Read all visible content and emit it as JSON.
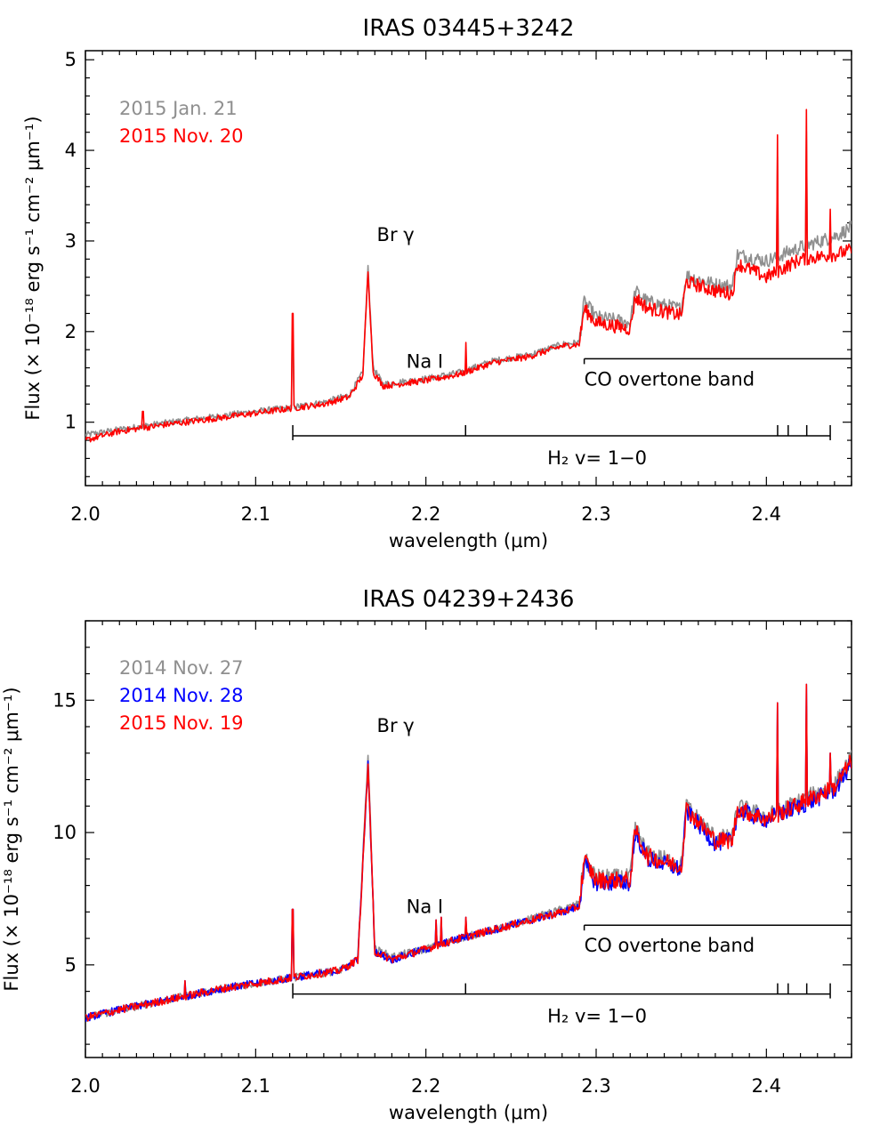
{
  "chart_data": [
    {
      "type": "line",
      "title": "IRAS 03445+3242",
      "xlabel": "wavelength (μm)",
      "ylabel": "Flux (× 10⁻¹⁸ erg s⁻¹ cm⁻² μm⁻¹)",
      "xlim": [
        2.0,
        2.45
      ],
      "ylim": [
        0.3,
        5.1
      ],
      "xticks": [
        "2.0",
        "2.1",
        "2.2",
        "2.3",
        "2.4"
      ],
      "yticks": [
        "1",
        "2",
        "3",
        "4",
        "5"
      ],
      "ytick_values": [
        1,
        2,
        3,
        4,
        5
      ],
      "series": [
        {
          "name": "2015 Jan. 21",
          "color": "#8f8f8f",
          "points": [
            [
              2.0,
              0.86
            ],
            [
              2.02,
              0.92
            ],
            [
              2.05,
              1.0
            ],
            [
              2.08,
              1.07
            ],
            [
              2.1,
              1.12
            ],
            [
              2.12,
              1.16
            ],
            [
              2.14,
              1.22
            ],
            [
              2.155,
              1.3
            ],
            [
              2.163,
              1.55
            ],
            [
              2.166,
              2.7
            ],
            [
              2.169,
              1.6
            ],
            [
              2.175,
              1.42
            ],
            [
              2.2,
              1.48
            ],
            [
              2.22,
              1.55
            ],
            [
              2.24,
              1.68
            ],
            [
              2.26,
              1.74
            ],
            [
              2.27,
              1.8
            ],
            [
              2.28,
              1.86
            ],
            [
              2.29,
              1.88
            ],
            [
              2.293,
              2.33
            ],
            [
              2.3,
              2.16
            ],
            [
              2.32,
              2.1
            ],
            [
              2.323,
              2.45
            ],
            [
              2.33,
              2.33
            ],
            [
              2.35,
              2.25
            ],
            [
              2.353,
              2.62
            ],
            [
              2.37,
              2.52
            ],
            [
              2.38,
              2.5
            ],
            [
              2.383,
              2.85
            ],
            [
              2.4,
              2.78
            ],
            [
              2.42,
              2.93
            ],
            [
              2.44,
              3.05
            ],
            [
              2.45,
              3.15
            ]
          ]
        },
        {
          "name": "2015 Nov. 20",
          "color": "#ff0000",
          "points": [
            [
              2.0,
              0.8
            ],
            [
              2.02,
              0.9
            ],
            [
              2.05,
              0.98
            ],
            [
              2.08,
              1.05
            ],
            [
              2.1,
              1.1
            ],
            [
              2.12,
              1.15
            ],
            [
              2.14,
              1.2
            ],
            [
              2.155,
              1.28
            ],
            [
              2.163,
              1.52
            ],
            [
              2.166,
              2.68
            ],
            [
              2.169,
              1.55
            ],
            [
              2.175,
              1.4
            ],
            [
              2.2,
              1.46
            ],
            [
              2.22,
              1.53
            ],
            [
              2.24,
              1.66
            ],
            [
              2.26,
              1.72
            ],
            [
              2.27,
              1.78
            ],
            [
              2.28,
              1.84
            ],
            [
              2.29,
              1.86
            ],
            [
              2.293,
              2.25
            ],
            [
              2.3,
              2.1
            ],
            [
              2.32,
              2.03
            ],
            [
              2.323,
              2.38
            ],
            [
              2.33,
              2.26
            ],
            [
              2.35,
              2.18
            ],
            [
              2.353,
              2.55
            ],
            [
              2.37,
              2.45
            ],
            [
              2.38,
              2.42
            ],
            [
              2.383,
              2.75
            ],
            [
              2.4,
              2.6
            ],
            [
              2.42,
              2.8
            ],
            [
              2.44,
              2.85
            ],
            [
              2.45,
              2.9
            ]
          ]
        }
      ],
      "emission_lines": [
        {
          "x": 2.1218,
          "peak": 2.2
        },
        {
          "x": 2.2233,
          "peak": 1.88
        },
        {
          "x": 2.4066,
          "peak": 4.17
        },
        {
          "x": 2.4237,
          "peak": 4.45
        },
        {
          "x": 2.4375,
          "peak": 3.35
        },
        {
          "x": 2.0338,
          "peak": 1.12
        }
      ],
      "annotations": {
        "br_gamma": {
          "text": "Br γ",
          "x": 2.166,
          "y": 3.0
        },
        "na_i": {
          "text": "Na I",
          "x": 2.192,
          "y": 1.7
        },
        "co_band": {
          "text": "CO overtone band",
          "x_start": 2.293,
          "x_end": 2.45,
          "y": 1.7
        },
        "h2": {
          "text": "H₂ v= 1−0",
          "x_start": 2.1218,
          "x_end": 2.4375,
          "y": 0.85,
          "ticks": [
            2.1218,
            2.2233,
            2.4066,
            2.4128,
            2.4237,
            2.4375
          ]
        }
      }
    },
    {
      "type": "line",
      "title": "IRAS 04239+2436",
      "xlabel": "wavelength (μm)",
      "ylabel": "Flux (× 10⁻¹⁸ erg s⁻¹ cm⁻² μm⁻¹)",
      "xlim": [
        2.0,
        2.45
      ],
      "ylim": [
        1.5,
        18.0
      ],
      "xticks": [
        "2.0",
        "2.1",
        "2.2",
        "2.3",
        "2.4"
      ],
      "yticks": [
        "5",
        "10",
        "15"
      ],
      "ytick_values": [
        5,
        10,
        15
      ],
      "series": [
        {
          "name": "2014 Nov. 27",
          "color": "#8f8f8f",
          "points": [
            [
              2.0,
              3.0
            ],
            [
              2.02,
              3.3
            ],
            [
              2.05,
              3.7
            ],
            [
              2.08,
              4.1
            ],
            [
              2.1,
              4.3
            ],
            [
              2.12,
              4.5
            ],
            [
              2.15,
              4.8
            ],
            [
              2.16,
              5.2
            ],
            [
              2.166,
              13.0
            ],
            [
              2.17,
              5.6
            ],
            [
              2.18,
              5.3
            ],
            [
              2.2,
              5.6
            ],
            [
              2.22,
              6.0
            ],
            [
              2.25,
              6.5
            ],
            [
              2.28,
              7.1
            ],
            [
              2.29,
              7.3
            ],
            [
              2.293,
              9.0
            ],
            [
              2.3,
              8.3
            ],
            [
              2.32,
              8.3
            ],
            [
              2.323,
              10.2
            ],
            [
              2.33,
              9.2
            ],
            [
              2.35,
              8.8
            ],
            [
              2.353,
              11.0
            ],
            [
              2.37,
              9.8
            ],
            [
              2.38,
              9.8
            ],
            [
              2.383,
              11.0
            ],
            [
              2.4,
              10.6
            ],
            [
              2.42,
              11.2
            ],
            [
              2.44,
              11.8
            ],
            [
              2.45,
              12.8
            ]
          ]
        },
        {
          "name": "2014 Nov. 28",
          "color": "#0000ff",
          "points": [
            [
              2.0,
              3.0
            ],
            [
              2.02,
              3.3
            ],
            [
              2.05,
              3.7
            ],
            [
              2.08,
              4.1
            ],
            [
              2.1,
              4.3
            ],
            [
              2.12,
              4.5
            ],
            [
              2.15,
              4.8
            ],
            [
              2.16,
              5.2
            ],
            [
              2.166,
              12.6
            ],
            [
              2.17,
              5.5
            ],
            [
              2.18,
              5.2
            ],
            [
              2.2,
              5.6
            ],
            [
              2.22,
              6.0
            ],
            [
              2.25,
              6.5
            ],
            [
              2.28,
              7.0
            ],
            [
              2.29,
              7.2
            ],
            [
              2.293,
              8.8
            ],
            [
              2.3,
              8.1
            ],
            [
              2.32,
              8.1
            ],
            [
              2.323,
              10.0
            ],
            [
              2.33,
              9.0
            ],
            [
              2.35,
              8.6
            ],
            [
              2.353,
              10.8
            ],
            [
              2.37,
              9.6
            ],
            [
              2.38,
              9.7
            ],
            [
              2.383,
              10.8
            ],
            [
              2.4,
              10.5
            ],
            [
              2.42,
              11.0
            ],
            [
              2.44,
              11.6
            ],
            [
              2.45,
              12.6
            ]
          ]
        },
        {
          "name": "2015 Nov. 19",
          "color": "#ff0000",
          "points": [
            [
              2.0,
              3.0
            ],
            [
              2.02,
              3.3
            ],
            [
              2.05,
              3.7
            ],
            [
              2.08,
              4.1
            ],
            [
              2.1,
              4.3
            ],
            [
              2.12,
              4.5
            ],
            [
              2.15,
              4.8
            ],
            [
              2.16,
              5.2
            ],
            [
              2.166,
              12.6
            ],
            [
              2.17,
              5.5
            ],
            [
              2.18,
              5.2
            ],
            [
              2.2,
              5.6
            ],
            [
              2.22,
              6.0
            ],
            [
              2.25,
              6.5
            ],
            [
              2.28,
              7.0
            ],
            [
              2.29,
              7.2
            ],
            [
              2.293,
              9.0
            ],
            [
              2.3,
              8.2
            ],
            [
              2.32,
              8.2
            ],
            [
              2.323,
              10.1
            ],
            [
              2.33,
              9.1
            ],
            [
              2.35,
              8.7
            ],
            [
              2.353,
              10.9
            ],
            [
              2.37,
              9.7
            ],
            [
              2.38,
              9.7
            ],
            [
              2.383,
              10.9
            ],
            [
              2.4,
              10.5
            ],
            [
              2.42,
              11.1
            ],
            [
              2.44,
              11.7
            ],
            [
              2.45,
              12.7
            ]
          ]
        }
      ],
      "emission_lines": [
        {
          "x": 2.1218,
          "peak": 7.1
        },
        {
          "x": 2.2233,
          "peak": 6.8
        },
        {
          "x": 2.4066,
          "peak": 14.9
        },
        {
          "x": 2.4237,
          "peak": 15.6
        },
        {
          "x": 2.4375,
          "peak": 13.0
        },
        {
          "x": 2.0586,
          "peak": 4.4
        },
        {
          "x": 2.2062,
          "peak": 6.7
        },
        {
          "x": 2.2089,
          "peak": 6.8
        }
      ],
      "annotations": {
        "br_gamma": {
          "text": "Br γ",
          "x": 2.166,
          "y": 13.8
        },
        "na_i": {
          "text": "Na I",
          "x": 2.192,
          "y": 7.3
        },
        "co_band": {
          "text": "CO overtone band",
          "x_start": 2.293,
          "x_end": 2.45,
          "y": 6.5
        },
        "h2": {
          "text": "H₂ v= 1−0",
          "x_start": 2.1218,
          "x_end": 2.4375,
          "y": 3.9,
          "ticks": [
            2.1218,
            2.2233,
            2.4066,
            2.4128,
            2.4237,
            2.4375
          ]
        }
      }
    }
  ]
}
